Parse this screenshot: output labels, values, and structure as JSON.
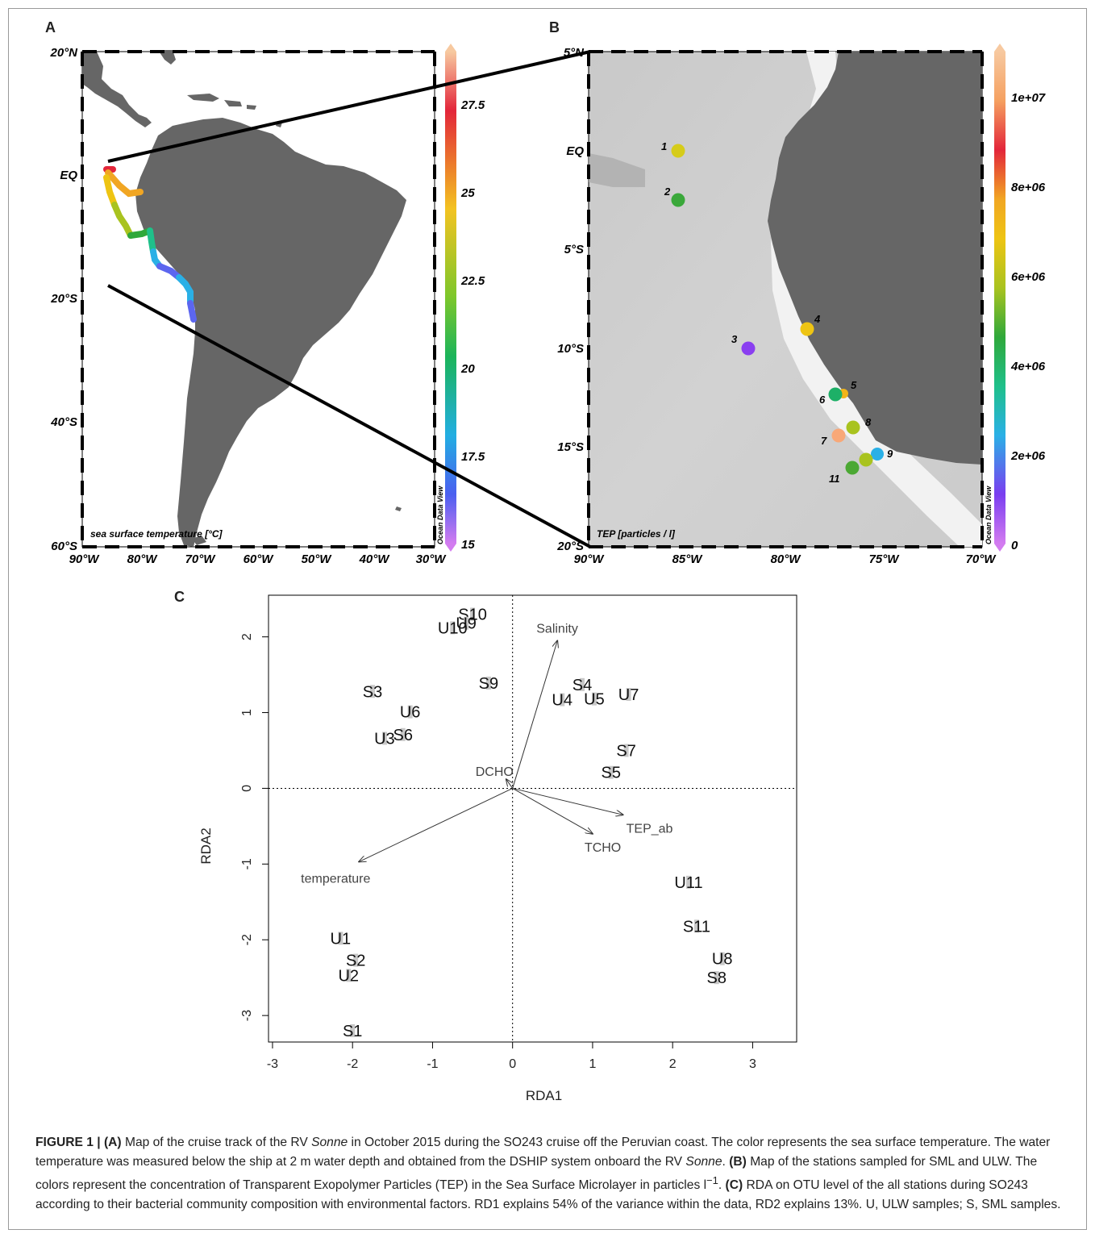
{
  "panels": {
    "A": {
      "letter": "A",
      "lat_labels": [
        "20°N",
        "EQ",
        "20°S",
        "40°S",
        "60°S"
      ],
      "lon_labels": [
        "90°W",
        "80°W",
        "70°W",
        "60°W",
        "50°W",
        "40°W",
        "30°W"
      ],
      "map_label": "sea surface temperature [°C]",
      "watermark": "Ocean Data View",
      "colorbar_ticks": [
        "27.5",
        "25",
        "22.5",
        "20",
        "17.5",
        "15"
      ]
    },
    "B": {
      "letter": "B",
      "lat_labels": [
        "5°N",
        "EQ",
        "5°S",
        "10°S",
        "15°S",
        "20°S"
      ],
      "lon_labels": [
        "90°W",
        "85°W",
        "80°W",
        "75°W",
        "70°W"
      ],
      "map_label": "TEP [particles / l]",
      "watermark": "Ocean Data View",
      "colorbar_ticks": [
        "1e+07",
        "8e+06",
        "6e+06",
        "4e+06",
        "2e+06",
        "0"
      ],
      "stations": [
        {
          "label": "1",
          "color": "#d6cc1a"
        },
        {
          "label": "2",
          "color": "#3aa83a"
        },
        {
          "label": "3",
          "color": "#8a3ff0"
        },
        {
          "label": "4",
          "color": "#eec413"
        },
        {
          "label": "5",
          "color": "#f2b418"
        },
        {
          "label": "6",
          "color": "#1db067"
        },
        {
          "label": "7",
          "color": "#f8a878"
        },
        {
          "label": "8",
          "color": "#a9c31f"
        },
        {
          "label": "9",
          "color": "#2ab0e6"
        },
        {
          "label": "",
          "color": "#a9c31f"
        },
        {
          "label": "11",
          "color": "#4ba833"
        }
      ]
    },
    "C": {
      "letter": "C"
    }
  },
  "chart_data": {
    "type": "scatter",
    "xlabel": "RDA1",
    "ylabel": "RDA2",
    "xlim": [
      -3.05,
      3.55
    ],
    "ylim": [
      -3.35,
      2.55
    ],
    "xticks": [
      -3,
      -2,
      -1,
      0,
      1,
      2,
      3
    ],
    "yticks": [
      -3,
      -2,
      -1,
      0,
      1,
      2
    ],
    "points": [
      {
        "label": "S10",
        "x": -0.5,
        "y": 2.3
      },
      {
        "label": "U9",
        "x": -0.58,
        "y": 2.18
      },
      {
        "label": "U10",
        "x": -0.75,
        "y": 2.12
      },
      {
        "label": "S3",
        "x": -1.75,
        "y": 1.28
      },
      {
        "label": "S9",
        "x": -0.3,
        "y": 1.39
      },
      {
        "label": "U6",
        "x": -1.28,
        "y": 1.01
      },
      {
        "label": "U3",
        "x": -1.6,
        "y": 0.66
      },
      {
        "label": "S6",
        "x": -1.37,
        "y": 0.71
      },
      {
        "label": "S4",
        "x": 0.87,
        "y": 1.37
      },
      {
        "label": "U4",
        "x": 0.62,
        "y": 1.17
      },
      {
        "label": "U5",
        "x": 1.02,
        "y": 1.18
      },
      {
        "label": "U7",
        "x": 1.45,
        "y": 1.24
      },
      {
        "label": "S7",
        "x": 1.42,
        "y": 0.5
      },
      {
        "label": "S5",
        "x": 1.23,
        "y": 0.21
      },
      {
        "label": "U11",
        "x": 2.2,
        "y": -1.24
      },
      {
        "label": "S11",
        "x": 2.3,
        "y": -1.82
      },
      {
        "label": "U8",
        "x": 2.62,
        "y": -2.25
      },
      {
        "label": "S8",
        "x": 2.55,
        "y": -2.5
      },
      {
        "label": "U1",
        "x": -2.15,
        "y": -1.98
      },
      {
        "label": "S2",
        "x": -1.96,
        "y": -2.27
      },
      {
        "label": "U2",
        "x": -2.05,
        "y": -2.47
      },
      {
        "label": "S1",
        "x": -2.0,
        "y": -3.2
      }
    ],
    "vectors": [
      {
        "name": "Salinity",
        "x": 0.56,
        "y": 1.95
      },
      {
        "name": "DCHO",
        "x": -0.08,
        "y": 0.12
      },
      {
        "name": "TEP_ab",
        "x": 1.38,
        "y": -0.35
      },
      {
        "name": "TCHO",
        "x": 1.0,
        "y": -0.6
      },
      {
        "name": "temperature",
        "x": -1.92,
        "y": -0.97
      }
    ]
  },
  "caption": {
    "figure_label": "FIGURE 1 |",
    "a_label": "(A)",
    "a_text": "Map of the cruise track of the RV",
    "a_ship": "Sonne",
    "a_text2": "in October 2015 during the SO243 cruise off the Peruvian coast. The color represents the sea surface temperature. The water temperature was measured below the ship at 2 m water depth and obtained from the DSHIP system onboard the RV",
    "a_ship2": "Sonne",
    "b_label": "(B)",
    "b_text": "Map of the stations sampled for SML and ULW. The colors represent the concentration of Transparent Exopolymer Particles (TEP) in the Sea Surface Microlayer in particles l",
    "b_sup": "−1",
    "c_label": "(C)",
    "c_text": "RDA on OTU level of the all stations during SO243 according to their bacterial community composition with environmental factors. RD1 explains 54% of the variance within the data, RD2 explains 13%. U, ULW samples; S, SML samples."
  }
}
